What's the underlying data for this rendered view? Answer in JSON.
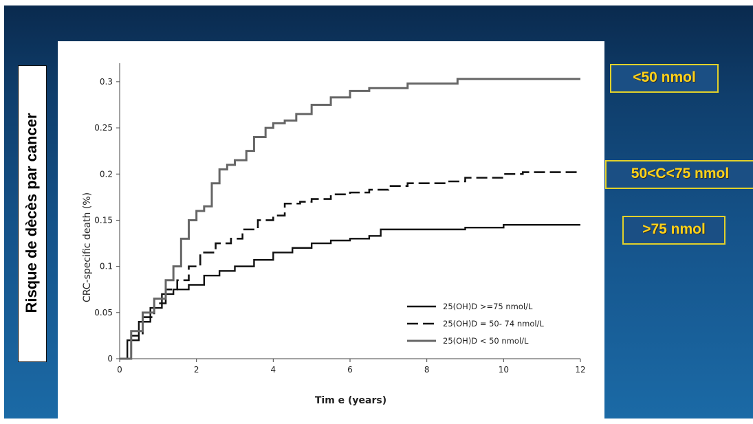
{
  "side_label": "Risque de dècès par cancer",
  "tags": {
    "low": "<50 nmol",
    "mid": "50<C<75 nmol",
    "high": ">75 nmol"
  },
  "chart_data": {
    "type": "line",
    "title": "",
    "xlabel": "Tim e (years)",
    "ylabel": "CRC-specific death (%)",
    "xlim": [
      0,
      12
    ],
    "ylim": [
      0,
      0.32
    ],
    "xticks": [
      0,
      2,
      4,
      6,
      8,
      10,
      12
    ],
    "yticks": [
      0,
      0.05,
      0.1,
      0.15,
      0.2,
      0.25,
      0.3
    ],
    "ytick_labels": [
      "0",
      "0.05",
      "0.1",
      "0.15",
      "0.2",
      "0.25",
      "0.3"
    ],
    "grid": false,
    "legend_position": "bottom-right",
    "series": [
      {
        "name": "25(OH)D >=75 nmol/L",
        "style": "solid",
        "color": "#111111",
        "points": [
          [
            0,
            0
          ],
          [
            0.2,
            0.02
          ],
          [
            0.5,
            0.04
          ],
          [
            0.8,
            0.055
          ],
          [
            1.1,
            0.07
          ],
          [
            1.4,
            0.075
          ],
          [
            1.8,
            0.08
          ],
          [
            2.2,
            0.09
          ],
          [
            2.6,
            0.095
          ],
          [
            3.0,
            0.1
          ],
          [
            3.5,
            0.107
          ],
          [
            4.0,
            0.115
          ],
          [
            4.5,
            0.12
          ],
          [
            5.0,
            0.125
          ],
          [
            5.5,
            0.128
          ],
          [
            6.0,
            0.13
          ],
          [
            6.5,
            0.133
          ],
          [
            6.8,
            0.14
          ],
          [
            8.0,
            0.14
          ],
          [
            9.0,
            0.142
          ],
          [
            10.0,
            0.145
          ],
          [
            12.0,
            0.145
          ]
        ]
      },
      {
        "name": "25(OH)D = 50- 74 nmol/L",
        "style": "dashed",
        "color": "#111111",
        "points": [
          [
            0,
            0
          ],
          [
            0.3,
            0.025
          ],
          [
            0.6,
            0.045
          ],
          [
            0.9,
            0.06
          ],
          [
            1.2,
            0.075
          ],
          [
            1.5,
            0.085
          ],
          [
            1.8,
            0.1
          ],
          [
            2.1,
            0.115
          ],
          [
            2.5,
            0.125
          ],
          [
            2.9,
            0.13
          ],
          [
            3.2,
            0.14
          ],
          [
            3.6,
            0.15
          ],
          [
            4.0,
            0.155
          ],
          [
            4.3,
            0.168
          ],
          [
            4.7,
            0.17
          ],
          [
            5.0,
            0.173
          ],
          [
            5.5,
            0.178
          ],
          [
            6.0,
            0.18
          ],
          [
            6.5,
            0.183
          ],
          [
            7.0,
            0.187
          ],
          [
            7.5,
            0.19
          ],
          [
            8.5,
            0.192
          ],
          [
            9.0,
            0.196
          ],
          [
            10.0,
            0.2
          ],
          [
            10.5,
            0.202
          ],
          [
            12.0,
            0.202
          ]
        ]
      },
      {
        "name": "25(OH)D < 50 nmol/L",
        "style": "grey",
        "color": "#666666",
        "points": [
          [
            0,
            0
          ],
          [
            0.3,
            0.03
          ],
          [
            0.6,
            0.05
          ],
          [
            0.9,
            0.065
          ],
          [
            1.2,
            0.085
          ],
          [
            1.4,
            0.1
          ],
          [
            1.6,
            0.13
          ],
          [
            1.8,
            0.15
          ],
          [
            2.0,
            0.16
          ],
          [
            2.2,
            0.165
          ],
          [
            2.4,
            0.19
          ],
          [
            2.6,
            0.205
          ],
          [
            2.8,
            0.21
          ],
          [
            3.0,
            0.215
          ],
          [
            3.3,
            0.225
          ],
          [
            3.5,
            0.24
          ],
          [
            3.8,
            0.25
          ],
          [
            4.0,
            0.255
          ],
          [
            4.3,
            0.258
          ],
          [
            4.6,
            0.265
          ],
          [
            5.0,
            0.275
          ],
          [
            5.5,
            0.283
          ],
          [
            6.0,
            0.29
          ],
          [
            6.5,
            0.293
          ],
          [
            7.0,
            0.293
          ],
          [
            7.5,
            0.298
          ],
          [
            8.0,
            0.298
          ],
          [
            8.8,
            0.303
          ],
          [
            10.0,
            0.303
          ],
          [
            12.0,
            0.303
          ]
        ]
      }
    ]
  }
}
